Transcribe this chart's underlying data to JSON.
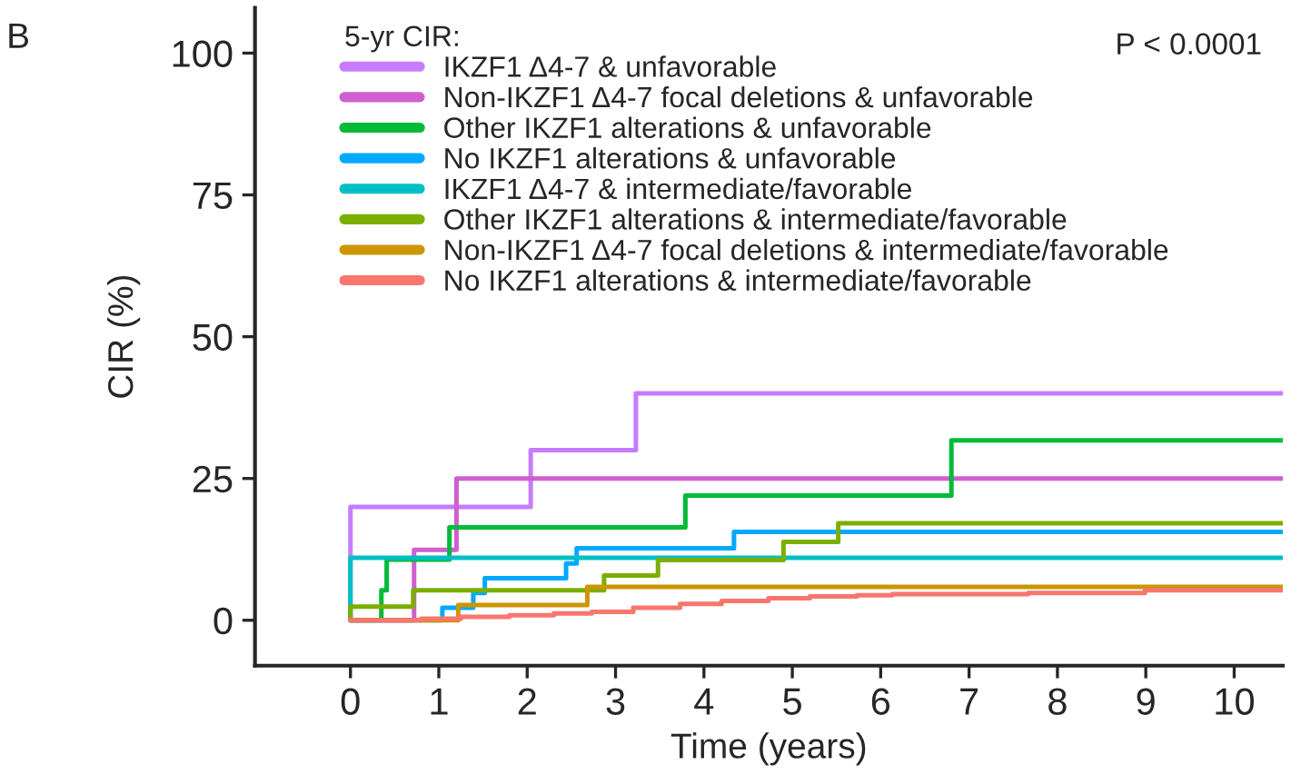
{
  "chart_data": {
    "type": "step",
    "xlabel": "Time (years)",
    "ylabel": "CIR (%)",
    "legend_title": "5-yr CIR:",
    "annotations": [
      "B",
      "P < 0.0001"
    ],
    "xlim": [
      -1.08,
      10.55
    ],
    "ylim": [
      -8,
      108
    ],
    "xticks": [
      0,
      1,
      2,
      3,
      4,
      5,
      6,
      7,
      8,
      9,
      10
    ],
    "yticks": [
      0,
      25,
      50,
      75,
      100
    ],
    "grid": false,
    "legend": "top left",
    "marker": "none",
    "line_style": "solid",
    "series": [
      {
        "name": "IKZF1 Δ4-7 & unfavorable",
        "color": "#c77cff",
        "x": [
          0,
          0,
          2.04,
          3.23,
          10.55
        ],
        "values": [
          0,
          20,
          30,
          40,
          40
        ]
      },
      {
        "name": "Non-IKZF1 Δ4-7 focal deletions & unfavorable",
        "color": "#cf5fcf",
        "x": [
          0,
          0.72,
          1.2,
          10.55
        ],
        "values": [
          0,
          12.4,
          25,
          25
        ]
      },
      {
        "name": "Other IKZF1 alterations & unfavorable",
        "color": "#00ba38",
        "x": [
          0,
          0.35,
          0.41,
          1.12,
          3.79,
          6.8,
          10.55
        ],
        "values": [
          0,
          5.3,
          10.7,
          16.4,
          22,
          31.7,
          31.7
        ]
      },
      {
        "name": "No IKZF1 alterations & unfavorable",
        "color": "#00a9ff",
        "x": [
          0,
          1.04,
          1.39,
          1.52,
          2.44,
          2.56,
          4.34,
          10.55
        ],
        "values": [
          0,
          2.2,
          4.8,
          7.4,
          10,
          12.7,
          15.6,
          15.6
        ]
      },
      {
        "name": "IKZF1 Δ4-7 & intermediate/favorable",
        "color": "#00bfc4",
        "x": [
          0,
          0,
          10.55
        ],
        "values": [
          0,
          11,
          11
        ]
      },
      {
        "name": "Other IKZF1 alterations & intermediate/favorable",
        "color": "#7cae00",
        "x": [
          0,
          0,
          0.71,
          2.87,
          3.48,
          4.9,
          5.52,
          10.55
        ],
        "values": [
          0,
          2.4,
          5.3,
          7.9,
          10.6,
          13.8,
          17.1,
          17.1
        ]
      },
      {
        "name": "Non-IKZF1 Δ4-7 focal deletions & intermediate/favorable",
        "color": "#cd9600",
        "x": [
          0,
          1.22,
          2.68,
          10.55
        ],
        "values": [
          0,
          2.7,
          5.9,
          5.9
        ]
      },
      {
        "name": "No IKZF1 alterations & intermediate/favorable",
        "color": "#f8766d",
        "x": [
          0,
          0.8,
          1.25,
          1.8,
          2.3,
          2.73,
          3.2,
          3.73,
          4.2,
          4.73,
          5.2,
          5.73,
          6.13,
          7.67,
          8.99,
          10.55
        ],
        "values": [
          0,
          0.3,
          0.6,
          0.9,
          1.2,
          1.5,
          2.2,
          2.9,
          3.4,
          3.9,
          4.2,
          4.4,
          4.6,
          4.8,
          5.3,
          5.3
        ]
      }
    ]
  }
}
